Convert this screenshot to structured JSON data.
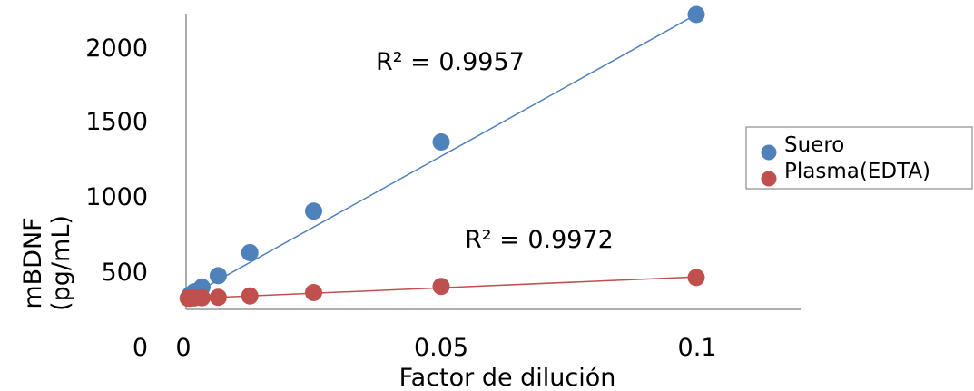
{
  "chart_data": {
    "type": "scatter",
    "xlabel": "Factor de dilución",
    "ylabel_lines": [
      "mBDNF",
      "(pg/mL)"
    ],
    "xlim": [
      0,
      0.12
    ],
    "ylim": [
      0,
      2200
    ],
    "x_ticks": [
      {
        "value": 0,
        "label": "0"
      },
      {
        "value": 0.05,
        "label": "0.05"
      },
      {
        "value": 0.1,
        "label": "0.1"
      }
    ],
    "y_ticks": [
      {
        "value": 0,
        "label": "0"
      },
      {
        "value": 500,
        "label": "500"
      },
      {
        "value": 1000,
        "label": "1000"
      },
      {
        "value": 1500,
        "label": "1500"
      },
      {
        "value": 2000,
        "label": "2000"
      }
    ],
    "series": [
      {
        "name": "Suero",
        "color": "#4f81bd",
        "trend_color": "#4f81bd",
        "x": [
          0.0008,
          0.0016,
          0.0031,
          0.0063,
          0.0125,
          0.025,
          0.05,
          0.1
        ],
        "y": [
          305,
          325,
          355,
          430,
          580,
          850,
          1300,
          2130
        ],
        "trendline": {
          "x0": 0,
          "y0": 285,
          "x1": 0.1,
          "y1": 2130
        }
      },
      {
        "name": "Plasma(EDTA)",
        "color": "#c0504d",
        "trend_color": "#c0504d",
        "x": [
          0.0004,
          0.0008,
          0.0016,
          0.0031,
          0.0063,
          0.0125,
          0.025,
          0.05,
          0.1
        ],
        "y": [
          283,
          283,
          285,
          286,
          289,
          298,
          320,
          360,
          418
        ],
        "trendline": {
          "x0": 0,
          "y0": 280,
          "x1": 0.1,
          "y1": 422
        }
      }
    ],
    "annotations": [
      {
        "text": "R² = 0.9957",
        "series": "Suero"
      },
      {
        "text": "R² = 0.9972",
        "series": "Plasma(EDTA)"
      }
    ],
    "grid": false,
    "legend_position": "right"
  }
}
